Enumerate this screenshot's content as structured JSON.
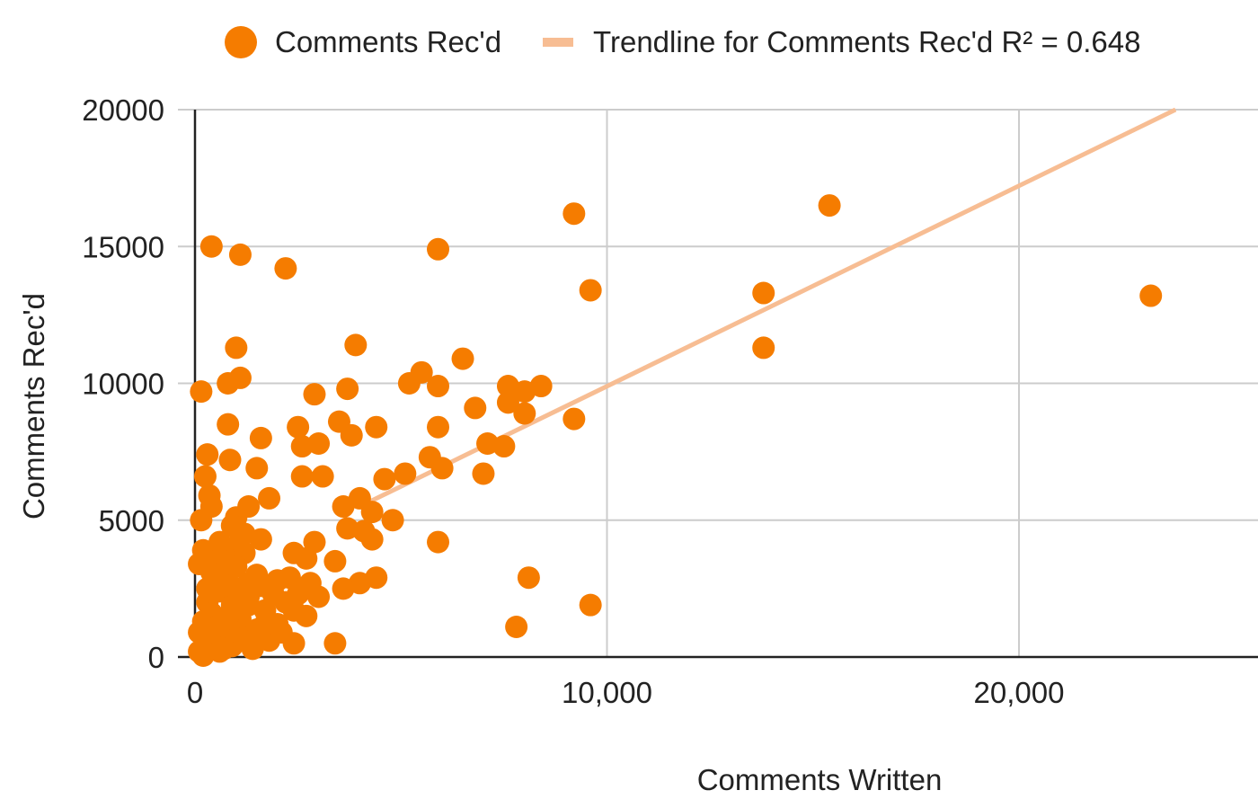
{
  "chart_data": {
    "type": "scatter",
    "title": "",
    "xlabel": "Comments Written",
    "ylabel": "Comments Rec'd",
    "xlim": [
      0,
      26000
    ],
    "ylim": [
      0,
      20000
    ],
    "x_ticks": [
      0,
      10000,
      20000
    ],
    "x_tick_labels": [
      "0",
      "10,000",
      "20,000"
    ],
    "y_ticks": [
      0,
      5000,
      10000,
      15000,
      20000
    ],
    "y_tick_labels": [
      "0",
      "5000",
      "10000",
      "15000",
      "20000"
    ],
    "grid": true,
    "legend": "top",
    "series": [
      {
        "name": "Comments Rec'd",
        "color": "#f57c00",
        "points": [
          [
            400,
            15000
          ],
          [
            1100,
            14700
          ],
          [
            2200,
            14200
          ],
          [
            5900,
            14900
          ],
          [
            9200,
            16200
          ],
          [
            15400,
            16500
          ],
          [
            9600,
            13400
          ],
          [
            13800,
            13300
          ],
          [
            13800,
            11300
          ],
          [
            23200,
            13200
          ],
          [
            150,
            9700
          ],
          [
            1000,
            11300
          ],
          [
            800,
            10000
          ],
          [
            1100,
            10200
          ],
          [
            3900,
            11400
          ],
          [
            6500,
            10900
          ],
          [
            5500,
            10400
          ],
          [
            5200,
            10000
          ],
          [
            5900,
            9900
          ],
          [
            3700,
            9800
          ],
          [
            2900,
            9600
          ],
          [
            7600,
            9900
          ],
          [
            8400,
            9900
          ],
          [
            8000,
            9700
          ],
          [
            7600,
            9300
          ],
          [
            8000,
            8900
          ],
          [
            6800,
            9100
          ],
          [
            9200,
            8700
          ],
          [
            800,
            8500
          ],
          [
            1600,
            8000
          ],
          [
            2500,
            8400
          ],
          [
            3500,
            8600
          ],
          [
            4400,
            8400
          ],
          [
            3800,
            8100
          ],
          [
            5900,
            8400
          ],
          [
            2600,
            7700
          ],
          [
            3000,
            7800
          ],
          [
            7100,
            7800
          ],
          [
            7500,
            7700
          ],
          [
            5700,
            7300
          ],
          [
            300,
            7400
          ],
          [
            850,
            7200
          ],
          [
            1500,
            6900
          ],
          [
            2600,
            6600
          ],
          [
            3100,
            6600
          ],
          [
            4600,
            6500
          ],
          [
            5100,
            6700
          ],
          [
            6000,
            6900
          ],
          [
            7000,
            6700
          ],
          [
            250,
            6600
          ],
          [
            350,
            5900
          ],
          [
            400,
            5500
          ],
          [
            1800,
            5800
          ],
          [
            1300,
            5500
          ],
          [
            1000,
            5100
          ],
          [
            3600,
            5500
          ],
          [
            4000,
            5800
          ],
          [
            4300,
            5300
          ],
          [
            4800,
            5000
          ],
          [
            3700,
            4700
          ],
          [
            4100,
            4600
          ],
          [
            4300,
            4300
          ],
          [
            150,
            5000
          ],
          [
            1600,
            4300
          ],
          [
            2900,
            4200
          ],
          [
            5900,
            4200
          ],
          [
            2400,
            3800
          ],
          [
            2700,
            3600
          ],
          [
            3400,
            3500
          ],
          [
            8100,
            2900
          ],
          [
            4400,
            2900
          ],
          [
            4000,
            2700
          ],
          [
            3600,
            2500
          ],
          [
            9600,
            1900
          ],
          [
            7800,
            1100
          ],
          [
            2400,
            500
          ],
          [
            3400,
            500
          ],
          [
            900,
            4000
          ],
          [
            1200,
            3800
          ],
          [
            500,
            3500
          ],
          [
            100,
            3400
          ],
          [
            700,
            3000
          ],
          [
            1500,
            3000
          ],
          [
            2000,
            2800
          ],
          [
            2800,
            2700
          ],
          [
            3000,
            2200
          ],
          [
            2200,
            2000
          ],
          [
            1300,
            2200
          ],
          [
            600,
            2400
          ],
          [
            300,
            2000
          ],
          [
            900,
            1900
          ],
          [
            1700,
            1700
          ],
          [
            2400,
            1700
          ],
          [
            2700,
            1500
          ],
          [
            400,
            1600
          ],
          [
            1100,
            1400
          ],
          [
            200,
            1300
          ],
          [
            800,
            1100
          ],
          [
            1500,
            1000
          ],
          [
            2000,
            1200
          ],
          [
            100,
            900
          ],
          [
            600,
            800
          ],
          [
            1200,
            700
          ],
          [
            1800,
            600
          ],
          [
            300,
            500
          ],
          [
            900,
            400
          ],
          [
            1400,
            300
          ],
          [
            100,
            200
          ],
          [
            600,
            200
          ],
          [
            200,
            50
          ],
          [
            700,
            2700
          ],
          [
            1000,
            2500
          ],
          [
            1300,
            1900
          ],
          [
            1900,
            2300
          ],
          [
            2500,
            2300
          ],
          [
            500,
            2900
          ],
          [
            400,
            3100
          ],
          [
            1000,
            3300
          ],
          [
            700,
            3700
          ],
          [
            1300,
            2700
          ],
          [
            300,
            2500
          ],
          [
            200,
            3900
          ],
          [
            800,
            1500
          ],
          [
            1700,
            1200
          ],
          [
            2100,
            900
          ],
          [
            500,
            1100
          ],
          [
            1000,
            600
          ],
          [
            1600,
            2600
          ],
          [
            2300,
            2900
          ],
          [
            2600,
            2500
          ],
          [
            600,
            4200
          ],
          [
            1200,
            4500
          ],
          [
            900,
            4800
          ],
          [
            300,
            1000
          ],
          [
            1400,
            600
          ],
          [
            700,
            300
          ]
        ]
      },
      {
        "name": "Trendline for Comments Rec'd R² = 0.648",
        "color": "#f7bd93",
        "type": "trendline",
        "points": [
          [
            4000,
            5500
          ],
          [
            23800,
            20000
          ]
        ]
      }
    ]
  }
}
